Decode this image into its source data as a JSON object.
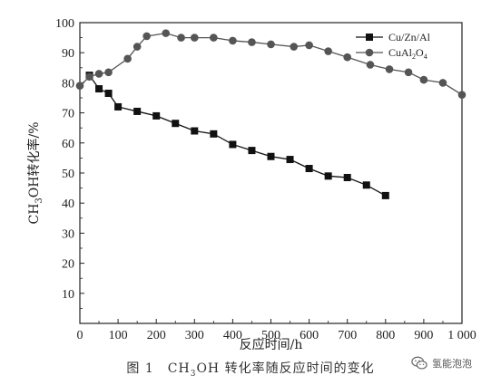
{
  "chart_data": {
    "type": "line",
    "xlabel": "反应时间/h",
    "ylabel_html": "CH<sub>3</sub>OH转化率/%",
    "xlim": [
      0,
      1000
    ],
    "ylim": [
      0,
      100
    ],
    "x_ticks": [
      0,
      100,
      200,
      300,
      400,
      500,
      600,
      700,
      800,
      900,
      1000
    ],
    "x_tick_labels": [
      "0",
      "100",
      "200",
      "300",
      "400",
      "500",
      "600",
      "700",
      "800",
      "900",
      "1 000"
    ],
    "y_ticks": [
      10,
      20,
      30,
      40,
      50,
      60,
      70,
      80,
      90,
      100
    ],
    "y_tick_labels": [
      "10",
      "20",
      "30",
      "40",
      "50",
      "60",
      "70",
      "80",
      "90",
      "100"
    ],
    "legend_position": "top-right",
    "series": [
      {
        "name": "Cu/Zn/Al",
        "marker": "square",
        "color": "#111111",
        "x": [
          25,
          50,
          75,
          100,
          150,
          200,
          250,
          300,
          350,
          400,
          450,
          500,
          550,
          600,
          650,
          700,
          750,
          800
        ],
        "y": [
          82.5,
          78,
          76.5,
          72,
          70.5,
          69,
          66.5,
          64,
          63,
          59.5,
          57.5,
          55.5,
          54.5,
          51.5,
          49,
          48.5,
          46,
          42.5
        ]
      },
      {
        "name": "CuAl2O4",
        "name_html": "CuAl<sub>2</sub>O<sub>4</sub>",
        "marker": "circle",
        "color": "#555555",
        "x": [
          0,
          25,
          50,
          75,
          125,
          150,
          175,
          225,
          265,
          300,
          350,
          400,
          450,
          500,
          560,
          600,
          650,
          700,
          760,
          810,
          860,
          900,
          950,
          1000
        ],
        "y": [
          79,
          82,
          83,
          83.5,
          88,
          92,
          95.5,
          96.5,
          95,
          95,
          95,
          94,
          93.5,
          92.8,
          92,
          92.5,
          90.5,
          88.5,
          86,
          84.5,
          83.5,
          81,
          80,
          76
        ]
      }
    ]
  },
  "caption_html": "图 1　CH<sub>3</sub>OH 转化率随反应时间的变化",
  "watermark": {
    "icon": "wechat-icon",
    "text": "氢能泡泡"
  }
}
